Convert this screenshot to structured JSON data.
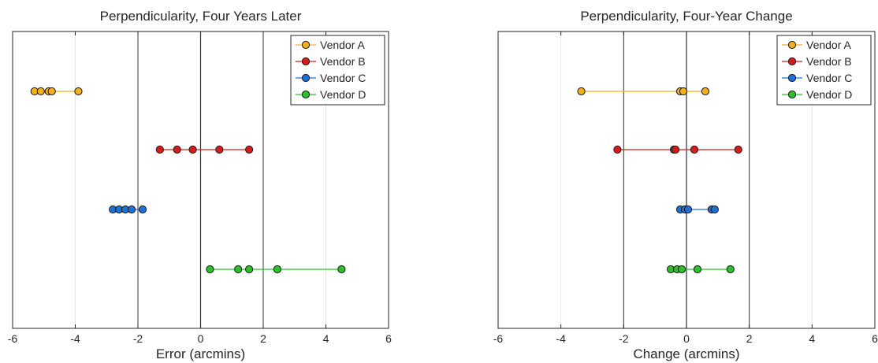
{
  "chart_data": [
    {
      "type": "scatter",
      "title": "Perpendicularity, Four Years Later",
      "xlabel": "Error (arcmins)",
      "ylabel": "",
      "xlim": [
        -6,
        6
      ],
      "xticks": [
        "-6",
        "-4",
        "-2",
        "0",
        "2",
        "4",
        "6"
      ],
      "grid": true,
      "reference_lines": [
        -2,
        0,
        2
      ],
      "legend_position": "top-right",
      "series": [
        {
          "name": "Vendor A",
          "color": "#f2b01e",
          "values": [
            -5.3,
            -5.1,
            -4.85,
            -4.75,
            -3.9
          ]
        },
        {
          "name": "Vendor B",
          "color": "#d91a1a",
          "values": [
            -1.3,
            -0.75,
            -0.25,
            0.6,
            1.55
          ]
        },
        {
          "name": "Vendor C",
          "color": "#1f6fd9",
          "values": [
            -2.8,
            -2.6,
            -2.4,
            -2.2,
            -1.85
          ]
        },
        {
          "name": "Vendor D",
          "color": "#2bbf2b",
          "values": [
            0.3,
            1.2,
            1.55,
            2.45,
            4.5
          ]
        }
      ]
    },
    {
      "type": "scatter",
      "title": "Perpendicularity, Four-Year Change",
      "xlabel": "Change (arcmins)",
      "ylabel": "",
      "xlim": [
        -6,
        6
      ],
      "xticks": [
        "-6",
        "-4",
        "-2",
        "0",
        "2",
        "4",
        "6"
      ],
      "grid": true,
      "reference_lines": [
        -2,
        0,
        2
      ],
      "legend_position": "top-right",
      "series": [
        {
          "name": "Vendor A",
          "color": "#f2b01e",
          "values": [
            -3.35,
            -0.2,
            -0.1,
            0.6
          ]
        },
        {
          "name": "Vendor B",
          "color": "#d91a1a",
          "values": [
            -2.2,
            -0.4,
            -0.35,
            0.25,
            1.65
          ]
        },
        {
          "name": "Vendor C",
          "color": "#1f6fd9",
          "values": [
            -0.2,
            -0.05,
            0.05,
            0.8,
            0.9
          ]
        },
        {
          "name": "Vendor D",
          "color": "#2bbf2b",
          "values": [
            -0.5,
            -0.3,
            -0.15,
            0.35,
            1.4
          ]
        }
      ]
    }
  ]
}
